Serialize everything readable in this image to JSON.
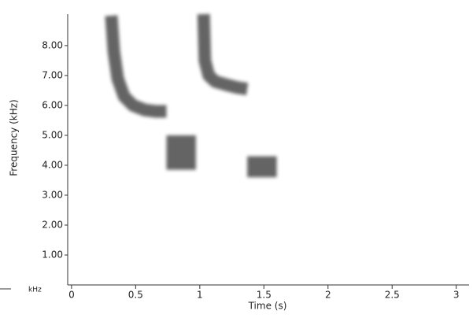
{
  "chart_data": {
    "type": "spectrogram",
    "xlabel": "Time (s)",
    "ylabel": "Frequency (kHz)",
    "yunit": "kHz",
    "xlim": [
      -0.03,
      3.1
    ],
    "ylim": [
      0,
      9.05
    ],
    "xticks": [
      0,
      0.5,
      1,
      1.5,
      2,
      2.5,
      3
    ],
    "yticks": [
      {
        "value": 1,
        "label": "1.00"
      },
      {
        "value": 2,
        "label": "2.00"
      },
      {
        "value": 3,
        "label": "3.00"
      },
      {
        "value": 4,
        "label": "4.00"
      },
      {
        "value": 5,
        "label": "5.00"
      },
      {
        "value": 6,
        "label": "6.00"
      },
      {
        "value": 7,
        "label": "7.00"
      },
      {
        "value": 8,
        "label": "8.00"
      }
    ],
    "color": "#4a4a4a",
    "sweeps": [
      {
        "x": [
          0.31,
          0.33,
          0.36,
          0.41,
          0.48,
          0.57,
          0.66,
          0.74
        ],
        "y": [
          9.0,
          7.8,
          6.9,
          6.3,
          6.0,
          5.85,
          5.8,
          5.8
        ]
      },
      {
        "x": [
          1.03,
          1.04,
          1.07,
          1.12,
          1.2,
          1.29,
          1.37
        ],
        "y": [
          9.05,
          7.5,
          7.0,
          6.8,
          6.7,
          6.6,
          6.55
        ]
      }
    ],
    "blocks": [
      {
        "x": [
          0.74,
          0.97
        ],
        "y": [
          3.85,
          5.0
        ]
      },
      {
        "x": [
          1.37,
          1.6
        ],
        "y": [
          3.6,
          4.3
        ]
      }
    ]
  }
}
